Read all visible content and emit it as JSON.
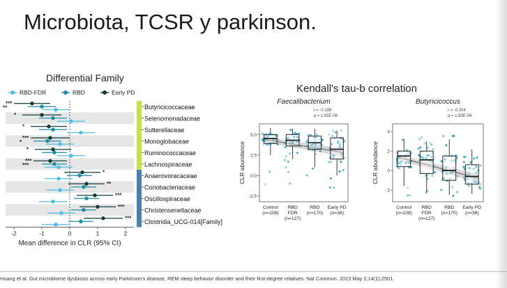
{
  "slide": {
    "title": "Microbiota, TCSR y parkinson.",
    "citation": "Huang et al. Gut microbiome dysbiosis across early Parkinson's disease, REM sleep behavior disorder and their first-degree relatives. Nat Commun. 2023 May 2;14(1):2501."
  },
  "colors": {
    "rbd_fdr": "#4dbde6",
    "rbd": "#1a8da6",
    "early_pd": "#103a3a",
    "group1_bar": "#c6e04a",
    "group2_bar": "#4682b4",
    "shade": "#e6e6e6",
    "scatter": "#2aa0c0"
  },
  "chart_data": [
    {
      "type": "scatter",
      "title": "Differential Family",
      "xlabel": "Mean difference in CLR (95% CI)",
      "xlim": [
        -2.3,
        2.3
      ],
      "xticks": [
        -2,
        -1,
        0,
        1,
        2
      ],
      "legend": [
        "RBD-FDR",
        "RBD",
        "Early PD"
      ],
      "categories": [
        "Butyricicoccaceae",
        "Selenomonadaceae",
        "Sutterellaceae",
        "Monoglobaceae",
        "Ruminococcaceae",
        "Lachnospiraceae",
        "Anaerovoracaceae",
        "Coriobacteriaceae",
        "Oscillospiraceae",
        "Christensenellaceae",
        "Clostridia_UCG-014[Family]"
      ],
      "series": [
        {
          "name": "RBD-FDR",
          "values": [
            -0.5,
            0.05,
            0.4,
            -0.35,
            0.05,
            -0.4,
            -0.4,
            -0.35,
            -0.6,
            -0.3,
            -0.5
          ],
          "ci": [
            [
              -1.0,
              0.0
            ],
            [
              -0.45,
              0.55
            ],
            [
              -0.1,
              0.9
            ],
            [
              -0.85,
              0.15
            ],
            [
              -0.45,
              0.55
            ],
            [
              -0.9,
              0.1
            ],
            [
              -0.9,
              0.1
            ],
            [
              -0.85,
              0.15
            ],
            [
              -1.1,
              -0.1
            ],
            [
              -0.8,
              0.2
            ],
            [
              -1.0,
              0.0
            ]
          ]
        },
        {
          "name": "RBD",
          "values": [
            -1.0,
            -0.6,
            -0.6,
            -0.8,
            -0.55,
            -0.55,
            0.35,
            0.5,
            0.6,
            0.5,
            0.4
          ],
          "ci": [
            [
              -1.5,
              -0.5
            ],
            [
              -1.1,
              -0.1
            ],
            [
              -1.1,
              -0.1
            ],
            [
              -1.3,
              -0.3
            ],
            [
              -1.0,
              -0.1
            ],
            [
              -1.0,
              -0.1
            ],
            [
              -0.1,
              0.8
            ],
            [
              0.05,
              0.95
            ],
            [
              0.15,
              1.05
            ],
            [
              0.05,
              0.95
            ],
            [
              -0.05,
              0.85
            ]
          ]
        },
        {
          "name": "Early PD",
          "values": [
            -1.35,
            -1.0,
            -0.75,
            -0.7,
            -0.6,
            -0.7,
            0.45,
            0.6,
            0.9,
            1.0,
            1.2
          ],
          "ci": [
            [
              -2.0,
              -0.7
            ],
            [
              -1.7,
              -0.3
            ],
            [
              -1.4,
              -0.1
            ],
            [
              -1.4,
              0.0
            ],
            [
              -1.25,
              0.05
            ],
            [
              -1.3,
              -0.1
            ],
            [
              -0.2,
              1.1
            ],
            [
              -0.05,
              1.25
            ],
            [
              0.25,
              1.55
            ],
            [
              0.35,
              1.65
            ],
            [
              0.5,
              1.9
            ]
          ]
        }
      ],
      "significance": [
        {
          "row": 0,
          "label": "***"
        },
        {
          "row": 0,
          "label": "**"
        },
        {
          "row": 1,
          "label": "*"
        },
        {
          "row": 2,
          "label": "*"
        },
        {
          "row": 3,
          "label": "***"
        },
        {
          "row": 3,
          "label": "*"
        },
        {
          "row": 4,
          "label": "*"
        },
        {
          "row": 5,
          "label": "***"
        },
        {
          "row": 5,
          "label": "***"
        },
        {
          "row": 6,
          "label": "*"
        },
        {
          "row": 7,
          "label": "**"
        },
        {
          "row": 8,
          "label": "***"
        },
        {
          "row": 9,
          "label": "***"
        },
        {
          "row": 10,
          "label": "***"
        }
      ]
    },
    {
      "type": "box",
      "title": "Kendall's tau-b correlation",
      "subtitle": "Faecalibacterium",
      "stats": [
        "r = -0.198",
        "q = 1.65E-06"
      ],
      "ylabel": "CLR abundance",
      "ylim": [
        -3.2,
        6.3
      ],
      "yticks": [
        -2.5,
        0.0,
        2.5,
        5.0
      ],
      "yticklabels": [
        "-2.5",
        "0.0",
        "2.5",
        "5.0"
      ],
      "categories": [
        [
          "Control",
          "(n=108)"
        ],
        [
          "RBD",
          "FDR",
          "(n=127)"
        ],
        [
          "RBD",
          "(n=170)"
        ],
        [
          "Early PD",
          "(n=36)"
        ]
      ],
      "boxes": [
        {
          "q1": 3.9,
          "median": 4.5,
          "q3": 5.0,
          "lo": 2.5,
          "hi": 5.8,
          "spread": [
            -2.2,
            6.0
          ]
        },
        {
          "q1": 3.6,
          "median": 4.3,
          "q3": 5.0,
          "lo": 2.0,
          "hi": 5.7,
          "spread": [
            -2.5,
            6.0
          ]
        },
        {
          "q1": 3.2,
          "median": 4.0,
          "q3": 4.8,
          "lo": 1.0,
          "hi": 5.7,
          "spread": [
            -2.8,
            6.0
          ]
        },
        {
          "q1": 2.0,
          "median": 3.2,
          "q3": 4.6,
          "lo": 0.0,
          "hi": 5.5,
          "spread": [
            -1.5,
            5.6
          ]
        }
      ],
      "trend": [
        4.4,
        2.8
      ]
    },
    {
      "type": "box",
      "subtitle": "Butyricicoccus",
      "stats": [
        "r = -0.204",
        "q = 1.50E-06"
      ],
      "ylabel": "CLR abundance",
      "ylim": [
        -3.2,
        4.8
      ],
      "yticks": [
        -2,
        0,
        2,
        4
      ],
      "yticklabels": [
        "-2",
        "0",
        "2",
        "4"
      ],
      "categories": [
        [
          "Control",
          "(n=108)"
        ],
        [
          "RBD",
          "FDR",
          "(n=127)"
        ],
        [
          "RBD",
          "(n=170)"
        ],
        [
          "Early PD",
          "(n=36)"
        ]
      ],
      "boxes": [
        {
          "q1": 0.4,
          "median": 1.5,
          "q3": 2.0,
          "lo": -1.6,
          "hi": 3.2,
          "spread": [
            -2.6,
            3.5
          ]
        },
        {
          "q1": -0.3,
          "median": 1.1,
          "q3": 2.0,
          "lo": -2.2,
          "hi": 3.0,
          "spread": [
            -2.5,
            3.5
          ]
        },
        {
          "q1": -1.0,
          "median": 0.0,
          "q3": 1.5,
          "lo": -2.5,
          "hi": 3.2,
          "spread": [
            -2.6,
            3.7
          ]
        },
        {
          "q1": -1.4,
          "median": -0.6,
          "q3": 0.6,
          "lo": -2.4,
          "hi": 1.9,
          "spread": [
            -2.5,
            2.2
          ]
        }
      ],
      "trend": [
        1.4,
        -0.8
      ]
    }
  ]
}
